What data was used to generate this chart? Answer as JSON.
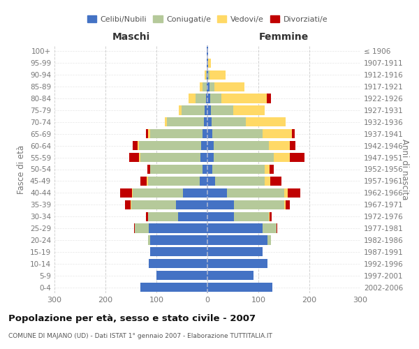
{
  "age_groups": [
    "100+",
    "95-99",
    "90-94",
    "85-89",
    "80-84",
    "75-79",
    "70-74",
    "65-69",
    "60-64",
    "55-59",
    "50-54",
    "45-49",
    "40-44",
    "35-39",
    "30-34",
    "25-29",
    "20-24",
    "15-19",
    "10-14",
    "5-9",
    "0-4"
  ],
  "birth_years": [
    "≤ 1906",
    "1907-1911",
    "1912-1916",
    "1917-1921",
    "1922-1926",
    "1927-1931",
    "1932-1936",
    "1937-1941",
    "1942-1946",
    "1947-1951",
    "1952-1956",
    "1957-1961",
    "1962-1966",
    "1967-1971",
    "1972-1976",
    "1977-1981",
    "1982-1986",
    "1987-1991",
    "1992-1996",
    "1997-2001",
    "2002-2006"
  ],
  "maschi_celibi": [
    1,
    1,
    1,
    2,
    3,
    5,
    7,
    10,
    12,
    14,
    10,
    15,
    48,
    62,
    58,
    115,
    112,
    112,
    115,
    100,
    132
  ],
  "maschi_coniugati": [
    0,
    0,
    2,
    8,
    20,
    46,
    72,
    102,
    122,
    118,
    102,
    102,
    98,
    88,
    58,
    28,
    4,
    0,
    0,
    0,
    0
  ],
  "maschi_vedovi": [
    0,
    0,
    2,
    5,
    14,
    5,
    4,
    4,
    3,
    2,
    1,
    2,
    2,
    1,
    0,
    0,
    0,
    0,
    0,
    0,
    0
  ],
  "maschi_divorziati": [
    0,
    0,
    0,
    0,
    0,
    0,
    0,
    5,
    9,
    20,
    5,
    13,
    23,
    10,
    4,
    1,
    0,
    0,
    0,
    0,
    0
  ],
  "femmine_celibi": [
    1,
    1,
    2,
    4,
    6,
    7,
    8,
    10,
    12,
    12,
    10,
    15,
    38,
    52,
    52,
    108,
    118,
    108,
    118,
    90,
    128
  ],
  "femmine_coniugati": [
    0,
    0,
    2,
    10,
    22,
    44,
    68,
    98,
    108,
    118,
    102,
    98,
    112,
    98,
    68,
    28,
    6,
    0,
    0,
    0,
    0
  ],
  "femmine_vedovi": [
    0,
    6,
    32,
    58,
    88,
    62,
    78,
    58,
    42,
    32,
    10,
    10,
    8,
    4,
    2,
    0,
    0,
    0,
    0,
    0,
    0
  ],
  "femmine_divorziati": [
    0,
    0,
    0,
    0,
    9,
    0,
    0,
    5,
    10,
    28,
    8,
    22,
    24,
    8,
    4,
    1,
    0,
    0,
    0,
    0,
    0
  ],
  "colors": {
    "celibi": "#4472c4",
    "coniugati": "#b5c99a",
    "vedovi": "#ffd966",
    "divorziati": "#c00000"
  },
  "xlim": 300,
  "title": "Popolazione per età, sesso e stato civile - 2007",
  "subtitle": "COMUNE DI MAJANO (UD) - Dati ISTAT 1° gennaio 2007 - Elaborazione TUTTITALIA.IT",
  "ylabel_left": "Fasce di età",
  "ylabel_right": "Anni di nascita",
  "xlabel_left": "Maschi",
  "xlabel_right": "Femmine",
  "legend_labels": [
    "Celibi/Nubili",
    "Coniugati/e",
    "Vedovi/e",
    "Divorziati/e"
  ],
  "background_color": "#ffffff",
  "grid_color": "#cccccc"
}
